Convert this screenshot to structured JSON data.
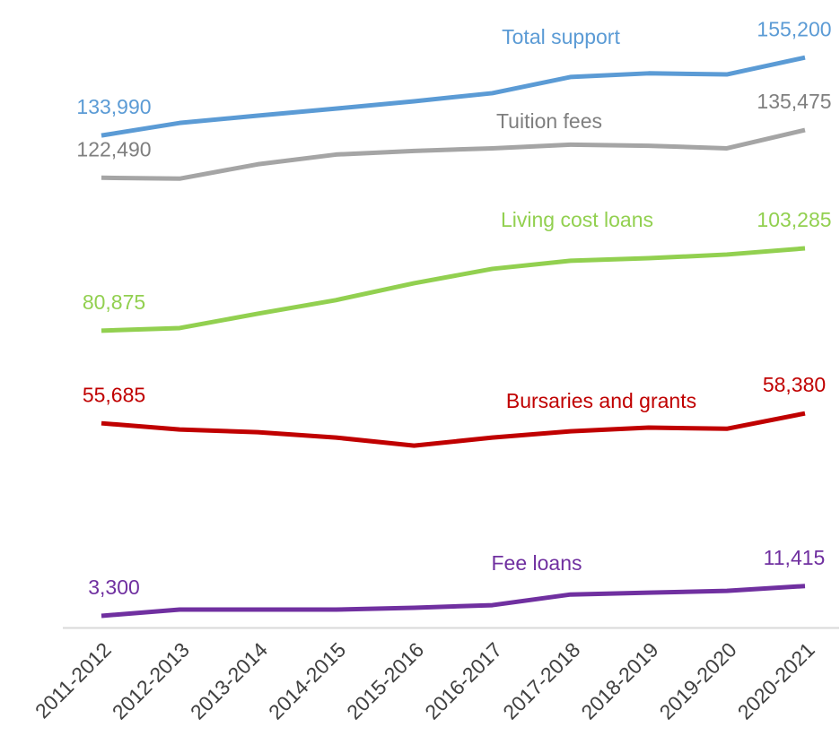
{
  "chart_data": {
    "type": "line",
    "categories": [
      "2011-2012",
      "2012-2013",
      "2013-2014",
      "2014-2015",
      "2015-2016",
      "2016-2017",
      "2017-2018",
      "2018-2019",
      "2019-2020",
      "2020-2021"
    ],
    "ylim": [
      0,
      170000
    ],
    "series": [
      {
        "name": "Total support",
        "color": "#5b9bd5",
        "values": [
          133990,
          137400,
          139400,
          141300,
          143300,
          145500,
          149900,
          150900,
          150600,
          155200
        ],
        "value_labels": [
          "133,990",
          null,
          null,
          null,
          null,
          null,
          null,
          null,
          null,
          "155,200"
        ]
      },
      {
        "name": "Tuition fees",
        "color": "#a5a5a5",
        "values": [
          122490,
          122250,
          126150,
          128800,
          129800,
          130500,
          131500,
          131200,
          130500,
          135475
        ],
        "value_labels": [
          "122,490",
          null,
          null,
          null,
          null,
          null,
          null,
          null,
          null,
          "135,475"
        ]
      },
      {
        "name": "Living cost loans",
        "color": "#92d050",
        "values": [
          80875,
          81600,
          85500,
          89200,
          93800,
          97700,
          99900,
          100600,
          101600,
          103285
        ],
        "value_labels": [
          "80,875",
          null,
          null,
          null,
          null,
          null,
          null,
          null,
          null,
          "103,285"
        ]
      },
      {
        "name": "Bursaries and grants",
        "color": "#c00000",
        "values": [
          55685,
          54000,
          53250,
          51800,
          49600,
          51800,
          53500,
          54500,
          54200,
          58380
        ],
        "value_labels": [
          "55,685",
          null,
          null,
          null,
          null,
          null,
          null,
          null,
          null,
          "58,380"
        ]
      },
      {
        "name": "Fee loans",
        "color": "#7030a0",
        "values": [
          3300,
          5000,
          5000,
          5000,
          5500,
          6200,
          9100,
          9600,
          10100,
          11415
        ],
        "value_labels": [
          "3,300",
          null,
          null,
          null,
          null,
          null,
          null,
          null,
          null,
          "11,415"
        ]
      }
    ]
  }
}
